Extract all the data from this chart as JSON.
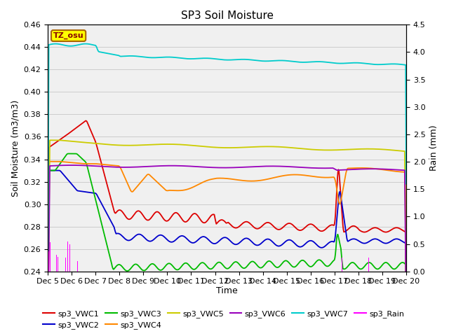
{
  "title": "SP3 Soil Moisture",
  "xlabel": "Time",
  "ylabel_left": "Soil Moisture (m3/m3)",
  "ylabel_right": "Rain (mm)",
  "ylim_left": [
    0.24,
    0.46
  ],
  "ylim_right": [
    0.0,
    4.5
  ],
  "plot_bg": "#f0f0f0",
  "fig_bg": "#ffffff",
  "label_box_text": "TZ_osu",
  "label_box_color": "#ffff00",
  "label_box_edge": "#aa6600",
  "colors": {
    "vwc1": "#dd0000",
    "vwc2": "#0000cc",
    "vwc3": "#00bb00",
    "vwc4": "#ff8800",
    "vwc5": "#cccc00",
    "vwc6": "#9900bb",
    "vwc7": "#00cccc",
    "rain": "#ff00ff"
  },
  "x_tick_labels": [
    "Dec 5",
    "Dec 6",
    "Dec 7",
    "Dec 8",
    "Dec 9",
    "Dec 10",
    "Dec 11",
    "Dec 12",
    "Dec 13",
    "Dec 14",
    "Dec 15",
    "Dec 16",
    "Dec 17",
    "Dec 18",
    "Dec 19",
    "Dec 20"
  ],
  "yticks_left": [
    0.24,
    0.26,
    0.28,
    0.3,
    0.32,
    0.34,
    0.36,
    0.38,
    0.4,
    0.42,
    0.44,
    0.46
  ],
  "yticks_right": [
    0.0,
    0.5,
    1.0,
    1.5,
    2.0,
    2.5,
    3.0,
    3.5,
    4.0,
    4.5
  ]
}
